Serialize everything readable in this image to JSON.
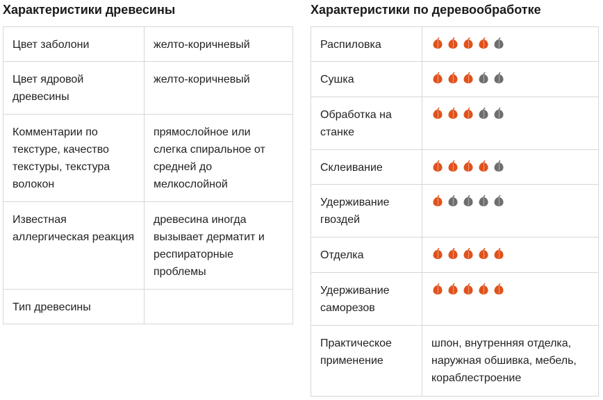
{
  "left": {
    "title": "Характеристики древесины",
    "rows": [
      [
        "Цвет заболони",
        "желто-коричневый"
      ],
      [
        "Цвет ядровой древесины",
        "желто-коричневый"
      ],
      [
        "Комментарии по текстуре, качество текстуры, текстура волокон",
        "прямослойное или слегка спиральное от средней до мелкослойной"
      ],
      [
        "Известная аллергическая реакция",
        "древесина иногда вызывает дерматит и респираторные проблемы"
      ],
      [
        "Тип древесины"
      ]
    ]
  },
  "right": {
    "title": "Характеристики по деревообработке",
    "max": 5,
    "rows": [
      {
        "label": "Распиловка",
        "rating": 4
      },
      {
        "label": "Сушка",
        "rating": 3
      },
      {
        "label": "Обработка на станке",
        "rating": 3
      },
      {
        "label": "Склеивание",
        "rating": 4
      },
      {
        "label": "Удерживание гвоздей",
        "rating": 1
      },
      {
        "label": "Отделка",
        "rating": 5
      },
      {
        "label": "Удерживание саморезов",
        "rating": 5
      },
      {
        "label": "Практическое применение",
        "text": "шпон, внутренняя отделка, наружная обшивка, мебель, кораблестроение"
      }
    ]
  }
}
